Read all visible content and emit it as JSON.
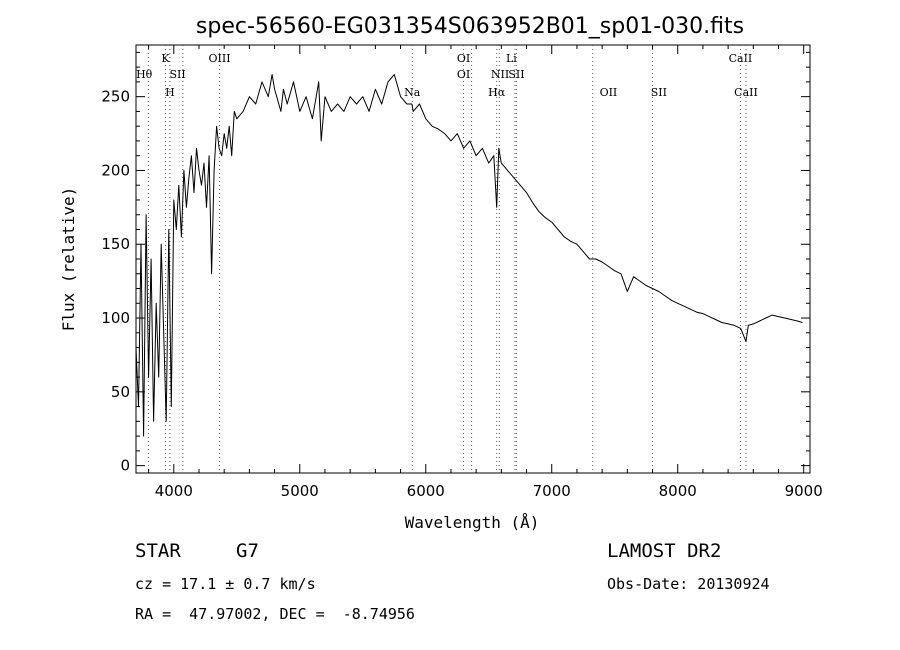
{
  "chart_data": {
    "type": "line",
    "title": "spec-56560-EG031354S063952B01_sp01-030.fits",
    "xlabel": "Wavelength (Å)",
    "ylabel": "Flux (relative)",
    "xlim": [
      3700,
      9050
    ],
    "ylim": [
      -5,
      285
    ],
    "xticks": [
      4000,
      5000,
      6000,
      7000,
      8000,
      9000
    ],
    "yticks": [
      0,
      50,
      100,
      150,
      200,
      250
    ],
    "grid": false,
    "series": [
      {
        "x": [
          3700,
          3720,
          3740,
          3760,
          3780,
          3800,
          3820,
          3840,
          3860,
          3880,
          3900,
          3920,
          3940,
          3960,
          3980,
          4000,
          4020,
          4040,
          4060,
          4080,
          4100,
          4120,
          4140,
          4160,
          4180,
          4200,
          4220,
          4240,
          4260,
          4280,
          4300,
          4320,
          4340,
          4360,
          4380,
          4400,
          4420,
          4440,
          4460,
          4480,
          4500,
          4550,
          4600,
          4650,
          4700,
          4750,
          4780,
          4800,
          4850,
          4870,
          4900,
          4950,
          5000,
          5050,
          5100,
          5150,
          5170,
          5200,
          5250,
          5300,
          5350,
          5400,
          5450,
          5500,
          5550,
          5600,
          5650,
          5700,
          5750,
          5800,
          5850,
          5890,
          5900,
          5950,
          6000,
          6050,
          6100,
          6150,
          6200,
          6250,
          6300,
          6350,
          6400,
          6450,
          6500,
          6540,
          6563,
          6580,
          6600,
          6650,
          6700,
          6750,
          6800,
          6850,
          6900,
          6950,
          7000,
          7050,
          7100,
          7150,
          7200,
          7250,
          7300,
          7350,
          7400,
          7450,
          7500,
          7550,
          7600,
          7650,
          7700,
          7750,
          7800,
          7850,
          7900,
          7950,
          8000,
          8050,
          8100,
          8150,
          8200,
          8250,
          8300,
          8350,
          8400,
          8450,
          8500,
          8542,
          8560,
          8600,
          8650,
          8700,
          8750,
          8800,
          8850,
          8900,
          8950,
          8990
        ],
        "y": [
          80,
          40,
          150,
          20,
          170,
          60,
          140,
          30,
          110,
          60,
          150,
          90,
          30,
          160,
          40,
          180,
          160,
          190,
          155,
          200,
          175,
          195,
          210,
          185,
          215,
          200,
          190,
          205,
          175,
          210,
          130,
          200,
          230,
          215,
          210,
          225,
          215,
          230,
          210,
          240,
          235,
          240,
          250,
          245,
          260,
          250,
          265,
          255,
          240,
          255,
          245,
          260,
          240,
          250,
          235,
          260,
          220,
          250,
          240,
          245,
          240,
          250,
          245,
          250,
          240,
          255,
          245,
          260,
          265,
          250,
          245,
          245,
          240,
          245,
          235,
          230,
          228,
          225,
          220,
          225,
          215,
          220,
          210,
          215,
          205,
          210,
          175,
          215,
          205,
          200,
          195,
          190,
          185,
          178,
          172,
          168,
          165,
          160,
          155,
          152,
          150,
          145,
          140,
          140,
          138,
          135,
          132,
          130,
          118,
          128,
          125,
          122,
          120,
          118,
          115,
          112,
          110,
          108,
          106,
          104,
          103,
          101,
          99,
          97,
          96,
          95,
          93,
          84,
          95,
          96,
          98,
          100,
          102,
          101,
          100,
          99,
          98,
          97
        ],
        "color": "#000000"
      }
    ],
    "spectral_lines": [
      {
        "label": "Hθ",
        "x": 3798,
        "row": 1,
        "label_x": 3765
      },
      {
        "label": "K",
        "x": 3934,
        "row": 0
      },
      {
        "label": "H",
        "x": 3969,
        "row": 2
      },
      {
        "label": "SII",
        "x": 4072,
        "row": 1,
        "label_x": 4030
      },
      {
        "label": "OIII",
        "x": 4363,
        "row": 0
      },
      {
        "label": "Na",
        "x": 5893,
        "row": 2
      },
      {
        "label": "OI",
        "x": 6300,
        "row": 0
      },
      {
        "label": "OI",
        "x": 6364,
        "row": 1,
        "label_x": 6300
      },
      {
        "label": "Hα",
        "x": 6563,
        "row": 2
      },
      {
        "label": "Li",
        "x": 6708,
        "row": 0,
        "label_x": 6680
      },
      {
        "label": "NII",
        "x": 6584,
        "row": 1,
        "label_x": 6590
      },
      {
        "label": "SII",
        "x": 6720,
        "row": 1,
        "label_x": 6720
      },
      {
        "label": "OII",
        "x": 7325,
        "row": 2,
        "label_x": 7450
      },
      {
        "label": "SII",
        "x": 7800,
        "row": 2,
        "label_x": 7850
      },
      {
        "label": "CaII",
        "x": 8498,
        "row": 0
      },
      {
        "label": "CaII",
        "x": 8542,
        "row": 2
      }
    ]
  },
  "info": {
    "object_type": "STAR",
    "subclass": "G7",
    "survey": "LAMOST DR2",
    "velocity": "cz = 17.1 ± 0.7 km/s",
    "obs_date": "Obs-Date: 20130924",
    "coords": "RA =  47.97002, DEC =  -8.74956"
  }
}
